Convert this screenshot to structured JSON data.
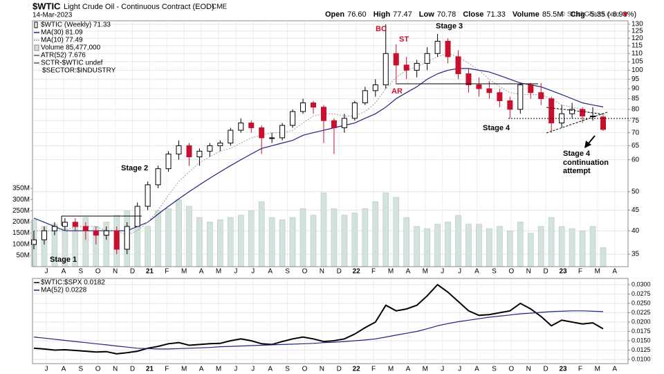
{
  "header": {
    "symbol": "$WTIC",
    "name": "Light Crude Oil - Continuous Contract (EOD)",
    "exchange": "CME",
    "date": "14-Mar-2023",
    "stats": [
      {
        "label": "Open",
        "value": "76.60"
      },
      {
        "label": "High",
        "value": "77.47"
      },
      {
        "label": "Low",
        "value": "70.78"
      },
      {
        "label": "Close",
        "value": "71.33"
      },
      {
        "label": "Volume",
        "value": "85.5M"
      },
      {
        "label": "Chg",
        "value": "-5.35 (-6.98%)"
      }
    ],
    "brand": "© StockCharts.com"
  },
  "chart_data": [
    {
      "type": "candlestick",
      "name": "$WTIC (Weekly) 71.33",
      "log_scale": true,
      "grid": true,
      "up_color": "#000000",
      "down_color": "#c8102e",
      "xticks": [
        "J",
        "A",
        "S",
        "O",
        "N",
        "D",
        "21",
        "F",
        "M",
        "A",
        "M",
        "J",
        "J",
        "A",
        "S",
        "O",
        "N",
        "D",
        "22",
        "F",
        "M",
        "A",
        "M",
        "J",
        "J",
        "A",
        "S",
        "O",
        "N",
        "D",
        "23",
        "F",
        "M",
        "A"
      ],
      "ylim": [
        32.6,
        132.6
      ],
      "yticks": [
        130,
        125,
        120,
        115,
        110,
        105,
        100,
        95,
        90,
        85,
        80,
        75,
        70,
        65,
        60,
        50,
        45,
        40,
        35
      ],
      "open": [
        37,
        38,
        40,
        41,
        42,
        41,
        40,
        39,
        40,
        36,
        41,
        46,
        52,
        57,
        62,
        65,
        61,
        63,
        65,
        66,
        71,
        74,
        72,
        68,
        68,
        73,
        79,
        83,
        81,
        75,
        72,
        76,
        83,
        89,
        92,
        110,
        103,
        100,
        104,
        110,
        118,
        108,
        98,
        92,
        90,
        88,
        84,
        80,
        92,
        88,
        85,
        74,
        78,
        80,
        77,
        76.6
      ],
      "high": [
        40,
        41,
        42,
        43,
        43,
        42,
        41,
        41,
        41,
        42,
        47,
        53,
        58,
        63,
        67,
        66,
        64,
        66,
        67,
        72,
        76,
        75,
        73,
        70,
        74,
        80,
        85,
        84,
        82,
        76,
        78,
        84,
        91,
        95,
        130,
        116,
        108,
        106,
        114,
        123,
        120,
        112,
        101,
        96,
        94,
        90,
        86,
        93,
        93,
        93,
        86,
        82,
        83,
        81,
        81,
        77.47
      ],
      "low": [
        36,
        37,
        39,
        40,
        40,
        38,
        37,
        38,
        35,
        35,
        41,
        45,
        51,
        56,
        60,
        58,
        58,
        61,
        63,
        65,
        70,
        70,
        62,
        66,
        67,
        72,
        78,
        78,
        66,
        62,
        70,
        75,
        82,
        86,
        90,
        93,
        95,
        96,
        100,
        108,
        104,
        95,
        88,
        86,
        85,
        81,
        76,
        78,
        85,
        82,
        70,
        72,
        76,
        74,
        75,
        70.78
      ],
      "close": [
        38,
        40,
        41,
        42,
        41,
        40,
        39,
        40,
        36,
        41,
        46,
        52,
        57,
        62,
        65,
        61,
        63,
        65,
        66,
        71,
        74,
        72,
        68,
        68,
        73,
        79,
        83,
        81,
        75,
        72,
        76,
        83,
        89,
        92,
        110,
        103,
        100,
        104,
        110,
        118,
        108,
        98,
        92,
        90,
        88,
        84,
        80,
        92,
        88,
        85,
        74,
        78,
        80,
        77,
        77,
        71.33
      ],
      "volume": {
        "name": "Volume 85,477,000",
        "color": "#d3e2da",
        "ylim": [
          0,
          1100
        ],
        "yticks": [
          {
            "value": 350,
            "label": "350M"
          },
          {
            "value": 300,
            "label": "300M"
          },
          {
            "value": 250,
            "label": "250M"
          },
          {
            "value": 200,
            "label": "200M"
          },
          {
            "value": 150,
            "label": "150M"
          },
          {
            "value": 100,
            "label": "100M"
          },
          {
            "value": 50,
            "label": "50M"
          }
        ],
        "values": [
          210,
          180,
          190,
          170,
          200,
          220,
          180,
          200,
          230,
          250,
          220,
          180,
          250,
          260,
          300,
          270,
          220,
          200,
          210,
          220,
          230,
          250,
          290,
          220,
          210,
          220,
          260,
          230,
          330,
          260,
          230,
          240,
          260,
          290,
          330,
          310,
          220,
          180,
          170,
          190,
          200,
          230,
          190,
          190,
          170,
          180,
          160,
          200,
          150,
          180,
          220,
          180,
          170,
          160,
          180,
          85.477
        ]
      },
      "series": [
        {
          "name": "MA(30) 81.09",
          "color": "#1a237e",
          "values": [
            43,
            42,
            41,
            40,
            40,
            40,
            40,
            40,
            40,
            40,
            41,
            42,
            44,
            46,
            48,
            50,
            52,
            54,
            56,
            58,
            60,
            62,
            64,
            65,
            66,
            67,
            69,
            70,
            71,
            72,
            73,
            74,
            76,
            78,
            81,
            85,
            88,
            91,
            95,
            98,
            100,
            101,
            101,
            100,
            99,
            97,
            95,
            93,
            92,
            91,
            89,
            87,
            85,
            83,
            82,
            81.09
          ]
        },
        {
          "name": "MA(10) 77.49",
          "color": "#9a9a9a",
          "values": [
            40,
            40,
            40,
            40,
            41,
            41,
            41,
            40,
            40,
            39,
            40,
            42,
            45,
            49,
            53,
            56,
            59,
            61,
            63,
            64,
            66,
            68,
            69,
            70,
            70,
            71,
            74,
            77,
            78,
            78,
            77,
            77,
            79,
            83,
            90,
            96,
            100,
            102,
            105,
            108,
            110,
            108,
            104,
            100,
            95,
            91,
            88,
            87,
            87,
            87,
            85,
            82,
            81,
            80,
            78,
            77.49
          ]
        }
      ],
      "legend_extra": [
        "ATR(52) 7.676",
        "SCTR-$WTIC undef",
        "$SECTOR:$INDUSTRY"
      ],
      "annotations": [
        "BC",
        "ST",
        "Stage 3",
        "AR",
        "Stage 2",
        "Stage 1",
        "Stage 4",
        "Stage 4",
        "continuation",
        "attempt"
      ]
    },
    {
      "type": "line",
      "ylim": [
        0.00889,
        0.03167
      ],
      "yticks": [
        {
          "value": 0.03,
          "label": "0.0300"
        },
        {
          "value": 0.0275,
          "label": "0.0275"
        },
        {
          "value": 0.025,
          "label": "0.0250"
        },
        {
          "value": 0.0225,
          "label": "0.0225"
        },
        {
          "value": 0.02,
          "label": "0.0200"
        },
        {
          "value": 0.0175,
          "label": "0.0175"
        },
        {
          "value": 0.015,
          "label": "0.0150"
        },
        {
          "value": 0.0125,
          "label": "0.0125"
        },
        {
          "value": 0.01,
          "label": "0.0100"
        }
      ],
      "series": [
        {
          "name": "$WTIC:$SPX 0.0182",
          "color": "#000000",
          "values": [
            0.013,
            0.0128,
            0.0125,
            0.0126,
            0.0124,
            0.0122,
            0.012,
            0.0121,
            0.0115,
            0.0118,
            0.0122,
            0.013,
            0.0135,
            0.0142,
            0.0145,
            0.0138,
            0.014,
            0.0142,
            0.0143,
            0.015,
            0.0155,
            0.015,
            0.0142,
            0.014,
            0.0148,
            0.0155,
            0.016,
            0.0155,
            0.0148,
            0.015,
            0.0155,
            0.0168,
            0.0185,
            0.02,
            0.0245,
            0.023,
            0.0235,
            0.0245,
            0.027,
            0.03,
            0.028,
            0.0255,
            0.023,
            0.0218,
            0.022,
            0.0225,
            0.023,
            0.025,
            0.0235,
            0.0215,
            0.019,
            0.0205,
            0.02,
            0.0195,
            0.0198,
            0.0182
          ]
        },
        {
          "name": "MA(52) 0.0228",
          "color": "#1a237e",
          "values": [
            0.016,
            0.0157,
            0.0154,
            0.0151,
            0.0148,
            0.0145,
            0.0142,
            0.0139,
            0.0136,
            0.0133,
            0.013,
            0.0129,
            0.0128,
            0.0128,
            0.0129,
            0.013,
            0.0131,
            0.0132,
            0.0134,
            0.0135,
            0.0136,
            0.0137,
            0.0138,
            0.0139,
            0.014,
            0.0141,
            0.0142,
            0.0143,
            0.0145,
            0.0146,
            0.0148,
            0.015,
            0.0152,
            0.0155,
            0.016,
            0.0165,
            0.017,
            0.0175,
            0.0182,
            0.019,
            0.0196,
            0.0201,
            0.0205,
            0.0209,
            0.0213,
            0.0216,
            0.0219,
            0.0222,
            0.0224,
            0.0226,
            0.0228,
            0.0229,
            0.023,
            0.023,
            0.0229,
            0.0228
          ]
        }
      ]
    }
  ]
}
